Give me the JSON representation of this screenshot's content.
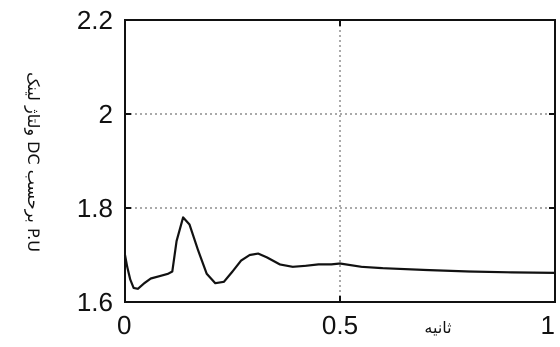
{
  "chart_data": {
    "type": "line",
    "title": "",
    "xlabel": "ثانیه",
    "ylabel": "ولتاژ لینک DC برحسب P.U",
    "xlim": [
      0,
      1
    ],
    "ylim": [
      1.6,
      2.2
    ],
    "x_ticks": [
      "0",
      "0.5",
      "1"
    ],
    "y_ticks": [
      "1.6",
      "1.8",
      "2",
      "2.2"
    ],
    "grid": true,
    "series": [
      {
        "x": [
          0.0,
          0.005,
          0.012,
          0.02,
          0.03,
          0.045,
          0.06,
          0.08,
          0.1,
          0.11,
          0.12,
          0.135,
          0.15,
          0.17,
          0.19,
          0.21,
          0.23,
          0.25,
          0.27,
          0.29,
          0.31,
          0.33,
          0.36,
          0.39,
          0.42,
          0.45,
          0.48,
          0.5,
          0.55,
          0.6,
          0.7,
          0.8,
          0.9,
          1.0
        ],
        "y": [
          1.7,
          1.675,
          1.648,
          1.63,
          1.628,
          1.64,
          1.65,
          1.655,
          1.66,
          1.665,
          1.73,
          1.78,
          1.765,
          1.71,
          1.66,
          1.64,
          1.643,
          1.665,
          1.688,
          1.7,
          1.703,
          1.695,
          1.68,
          1.675,
          1.677,
          1.68,
          1.68,
          1.682,
          1.675,
          1.672,
          1.668,
          1.665,
          1.663,
          1.662
        ]
      }
    ]
  }
}
